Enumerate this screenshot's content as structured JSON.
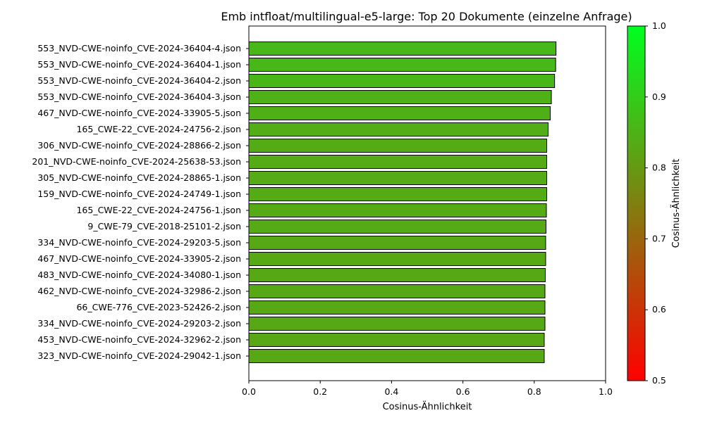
{
  "chart_data": {
    "type": "bar",
    "orientation": "horizontal",
    "title": "Emb intfloat/multilingual-e5-large: Top 20 Dokumente (einzelne Anfrage)",
    "xlabel": "Cosinus-Ähnlichkeit",
    "ylabel": "",
    "xlim": [
      0.0,
      1.0
    ],
    "xticks": [
      "0.0",
      "0.2",
      "0.4",
      "0.6",
      "0.8",
      "1.0"
    ],
    "grid": false,
    "categories": [
      "553_NVD-CWE-noinfo_CVE-2024-36404-4.json",
      "553_NVD-CWE-noinfo_CVE-2024-36404-1.json",
      "553_NVD-CWE-noinfo_CVE-2024-36404-2.json",
      "553_NVD-CWE-noinfo_CVE-2024-36404-3.json",
      "467_NVD-CWE-noinfo_CVE-2024-33905-5.json",
      "165_CWE-22_CVE-2024-24756-2.json",
      "306_NVD-CWE-noinfo_CVE-2024-28866-2.json",
      "201_NVD-CWE-noinfo_CVE-2024-25638-53.json",
      "305_NVD-CWE-noinfo_CVE-2024-28865-1.json",
      "159_NVD-CWE-noinfo_CVE-2024-24749-1.json",
      "165_CWE-22_CVE-2024-24756-1.json",
      "9_CWE-79_CVE-2018-25101-2.json",
      "334_NVD-CWE-noinfo_CVE-2024-29203-5.json",
      "467_NVD-CWE-noinfo_CVE-2024-33905-2.json",
      "483_NVD-CWE-noinfo_CVE-2024-34080-1.json",
      "462_NVD-CWE-noinfo_CVE-2024-32986-2.json",
      "66_CWE-776_CVE-2023-52426-2.json",
      "334_NVD-CWE-noinfo_CVE-2024-29203-2.json",
      "453_NVD-CWE-noinfo_CVE-2024-32962-2.json",
      "323_NVD-CWE-noinfo_CVE-2024-29042-1.json"
    ],
    "values": [
      0.861,
      0.86,
      0.857,
      0.848,
      0.845,
      0.839,
      0.835,
      0.835,
      0.835,
      0.835,
      0.834,
      0.833,
      0.832,
      0.832,
      0.831,
      0.83,
      0.83,
      0.83,
      0.828,
      0.828
    ],
    "colorbar": {
      "label": "Cosinus-Ähnlichkeit",
      "range": [
        0.5,
        1.0
      ],
      "ticks": [
        "0.5",
        "0.6",
        "0.7",
        "0.8",
        "0.9",
        "1.0"
      ],
      "color_low": "#ff0000",
      "color_high": "#00ff20"
    },
    "bar_edge_color": "#000000"
  }
}
